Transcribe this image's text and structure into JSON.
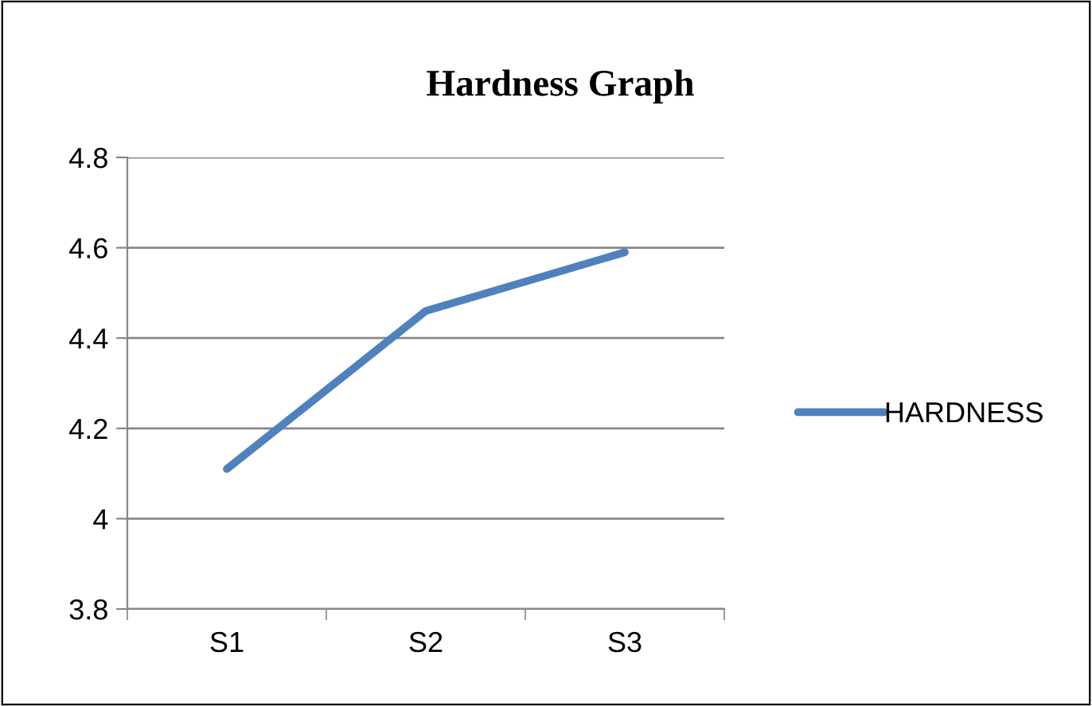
{
  "chart_data": {
    "type": "line",
    "title": "Hardness Graph",
    "categories": [
      "S1",
      "S2",
      "S3"
    ],
    "series": [
      {
        "name": "HARDNESS",
        "color": "#4f81bd",
        "values": [
          4.11,
          4.46,
          4.59
        ]
      }
    ],
    "ylim": [
      3.8,
      4.8
    ],
    "yticks": [
      {
        "value": 3.8,
        "label": "3.8"
      },
      {
        "value": 4,
        "label": "4"
      },
      {
        "value": 4.2,
        "label": "4.2"
      },
      {
        "value": 4.4,
        "label": "4.4"
      },
      {
        "value": 4.6,
        "label": "4.6"
      },
      {
        "value": 4.8,
        "label": "4.8"
      }
    ],
    "grid": "y",
    "legend": "right",
    "marker": "none",
    "line_style": "solid"
  }
}
